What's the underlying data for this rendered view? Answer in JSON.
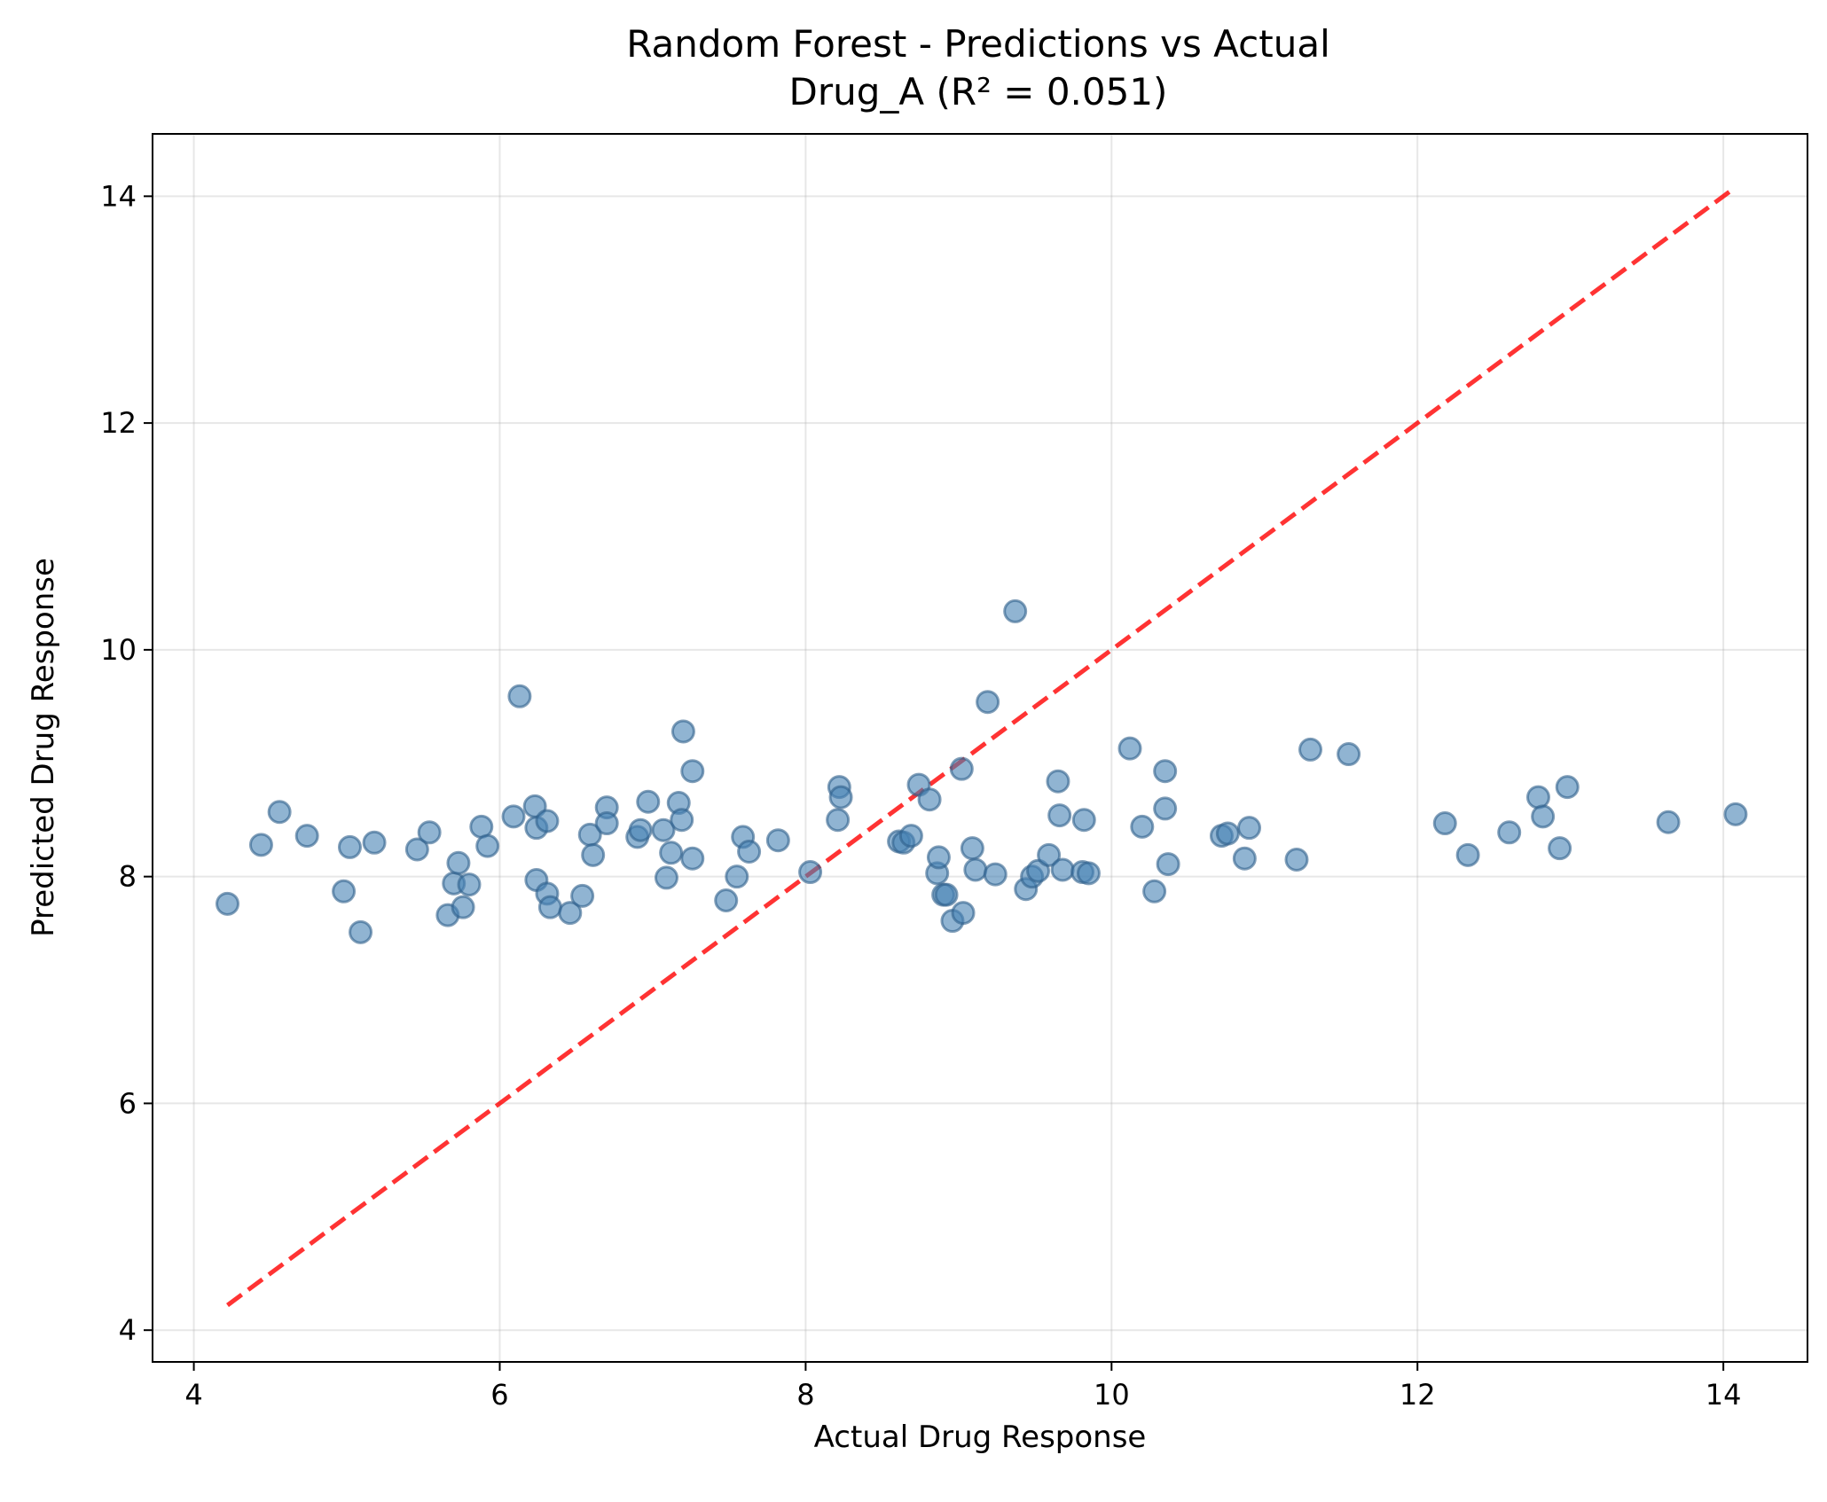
{
  "chart_data": {
    "type": "scatter",
    "title": "Random Forest - Predictions vs Actual",
    "subtitle": "Drug_A (R² = 0.051)",
    "xlabel": "Actual Drug Response",
    "ylabel": "Predicted Drug Response",
    "xlim": [
      3.73,
      14.55
    ],
    "ylim": [
      3.72,
      14.55
    ],
    "xticks": [
      4,
      6,
      8,
      10,
      12,
      14
    ],
    "yticks": [
      4,
      6,
      8,
      10,
      12,
      14
    ],
    "grid": true,
    "point_color": "#4682b4",
    "point_edge_color": "#2f5f8a",
    "point_alpha": 0.6,
    "reference_line": {
      "style": "dashed",
      "color": "#ff0000",
      "alpha": 0.8,
      "from": [
        4.22,
        4.22
      ],
      "to": [
        14.08,
        14.08
      ]
    },
    "points": [
      {
        "x": 4.22,
        "y": 7.76
      },
      {
        "x": 4.44,
        "y": 8.28
      },
      {
        "x": 4.56,
        "y": 8.57
      },
      {
        "x": 4.74,
        "y": 8.36
      },
      {
        "x": 4.98,
        "y": 7.87
      },
      {
        "x": 5.02,
        "y": 8.26
      },
      {
        "x": 5.09,
        "y": 7.51
      },
      {
        "x": 5.18,
        "y": 8.3
      },
      {
        "x": 5.46,
        "y": 8.24
      },
      {
        "x": 5.54,
        "y": 8.39
      },
      {
        "x": 5.66,
        "y": 7.66
      },
      {
        "x": 5.7,
        "y": 7.94
      },
      {
        "x": 5.73,
        "y": 8.12
      },
      {
        "x": 5.76,
        "y": 7.73
      },
      {
        "x": 5.8,
        "y": 7.93
      },
      {
        "x": 5.88,
        "y": 8.44
      },
      {
        "x": 5.92,
        "y": 8.27
      },
      {
        "x": 6.09,
        "y": 8.53
      },
      {
        "x": 6.13,
        "y": 9.59
      },
      {
        "x": 6.23,
        "y": 8.62
      },
      {
        "x": 6.24,
        "y": 8.43
      },
      {
        "x": 6.24,
        "y": 7.97
      },
      {
        "x": 6.31,
        "y": 8.49
      },
      {
        "x": 6.31,
        "y": 7.85
      },
      {
        "x": 6.33,
        "y": 7.73
      },
      {
        "x": 6.46,
        "y": 7.68
      },
      {
        "x": 6.54,
        "y": 7.83
      },
      {
        "x": 6.59,
        "y": 8.37
      },
      {
        "x": 6.61,
        "y": 8.19
      },
      {
        "x": 6.7,
        "y": 8.61
      },
      {
        "x": 6.7,
        "y": 8.47
      },
      {
        "x": 6.9,
        "y": 8.35
      },
      {
        "x": 6.92,
        "y": 8.41
      },
      {
        "x": 6.97,
        "y": 8.66
      },
      {
        "x": 7.07,
        "y": 8.41
      },
      {
        "x": 7.09,
        "y": 7.99
      },
      {
        "x": 7.12,
        "y": 8.21
      },
      {
        "x": 7.17,
        "y": 8.65
      },
      {
        "x": 7.19,
        "y": 8.5
      },
      {
        "x": 7.2,
        "y": 9.28
      },
      {
        "x": 7.26,
        "y": 8.93
      },
      {
        "x": 7.26,
        "y": 8.16
      },
      {
        "x": 7.48,
        "y": 7.79
      },
      {
        "x": 7.55,
        "y": 8.0
      },
      {
        "x": 7.59,
        "y": 8.35
      },
      {
        "x": 7.63,
        "y": 8.22
      },
      {
        "x": 7.82,
        "y": 8.32
      },
      {
        "x": 8.03,
        "y": 8.04
      },
      {
        "x": 8.21,
        "y": 8.5
      },
      {
        "x": 8.22,
        "y": 8.79
      },
      {
        "x": 8.23,
        "y": 8.7
      },
      {
        "x": 8.61,
        "y": 8.31
      },
      {
        "x": 8.64,
        "y": 8.3
      },
      {
        "x": 8.69,
        "y": 8.36
      },
      {
        "x": 8.74,
        "y": 8.81
      },
      {
        "x": 8.81,
        "y": 8.68
      },
      {
        "x": 8.86,
        "y": 8.03
      },
      {
        "x": 8.87,
        "y": 8.17
      },
      {
        "x": 8.9,
        "y": 7.84
      },
      {
        "x": 8.92,
        "y": 7.84
      },
      {
        "x": 8.96,
        "y": 7.61
      },
      {
        "x": 9.02,
        "y": 8.95
      },
      {
        "x": 9.03,
        "y": 7.68
      },
      {
        "x": 9.09,
        "y": 8.25
      },
      {
        "x": 9.11,
        "y": 8.06
      },
      {
        "x": 9.19,
        "y": 9.54
      },
      {
        "x": 9.24,
        "y": 8.02
      },
      {
        "x": 9.37,
        "y": 10.34
      },
      {
        "x": 9.44,
        "y": 7.89
      },
      {
        "x": 9.48,
        "y": 8.0
      },
      {
        "x": 9.52,
        "y": 8.05
      },
      {
        "x": 9.59,
        "y": 8.19
      },
      {
        "x": 9.65,
        "y": 8.84
      },
      {
        "x": 9.66,
        "y": 8.54
      },
      {
        "x": 9.68,
        "y": 8.06
      },
      {
        "x": 9.81,
        "y": 8.04
      },
      {
        "x": 9.82,
        "y": 8.5
      },
      {
        "x": 9.85,
        "y": 8.03
      },
      {
        "x": 10.12,
        "y": 9.13
      },
      {
        "x": 10.2,
        "y": 8.44
      },
      {
        "x": 10.28,
        "y": 7.87
      },
      {
        "x": 10.35,
        "y": 8.93
      },
      {
        "x": 10.35,
        "y": 8.6
      },
      {
        "x": 10.37,
        "y": 8.11
      },
      {
        "x": 10.72,
        "y": 8.36
      },
      {
        "x": 10.76,
        "y": 8.38
      },
      {
        "x": 10.87,
        "y": 8.16
      },
      {
        "x": 10.9,
        "y": 8.43
      },
      {
        "x": 11.21,
        "y": 8.15
      },
      {
        "x": 11.3,
        "y": 9.12
      },
      {
        "x": 11.55,
        "y": 9.08
      },
      {
        "x": 12.18,
        "y": 8.47
      },
      {
        "x": 12.33,
        "y": 8.19
      },
      {
        "x": 12.6,
        "y": 8.39
      },
      {
        "x": 12.79,
        "y": 8.7
      },
      {
        "x": 12.82,
        "y": 8.53
      },
      {
        "x": 12.93,
        "y": 8.25
      },
      {
        "x": 12.98,
        "y": 8.79
      },
      {
        "x": 13.64,
        "y": 8.48
      },
      {
        "x": 14.08,
        "y": 8.55
      }
    ]
  }
}
